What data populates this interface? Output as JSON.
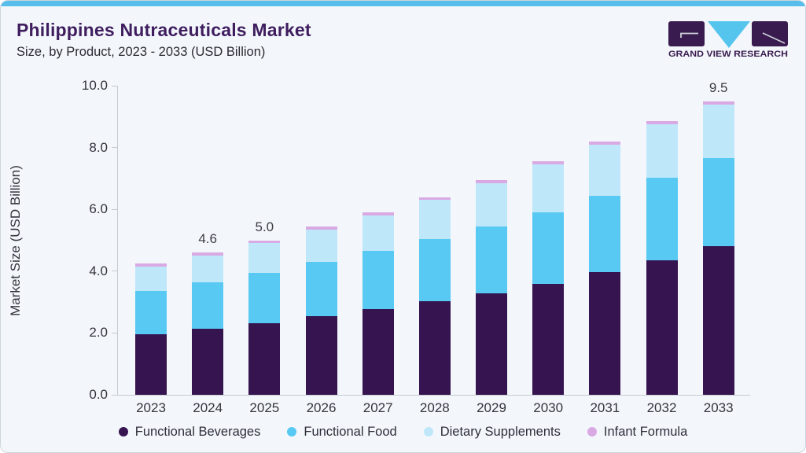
{
  "header": {
    "title": "Philippines Nutraceuticals Market",
    "subtitle": "Size, by Product, 2023 - 2033 (USD Billion)"
  },
  "logo": {
    "brand_text": "GRAND VIEW RESEARCH",
    "tile_color": "#3a1b4f",
    "triangle_color": "#56c5ee"
  },
  "colors": {
    "card_background": "#f3f7fb",
    "top_accent_bar": "#57bdeb",
    "title_text": "#3f1d5f",
    "axis_text": "#34333e",
    "axis_line": "#c6cbd2"
  },
  "chart_data": {
    "type": "bar",
    "stacked": true,
    "title": "Philippines Nutraceuticals Market Size, by Product, 2023 - 2033 (USD Billion)",
    "xlabel": "",
    "ylabel": "Market Size (USD Billion)",
    "ylim": [
      0,
      10
    ],
    "yticks": [
      "0.0",
      "2.0",
      "4.0",
      "6.0",
      "8.0",
      "10.0"
    ],
    "grid": false,
    "legend_position": "bottom",
    "categories": [
      "2023",
      "2024",
      "2025",
      "2026",
      "2027",
      "2028",
      "2029",
      "2030",
      "2031",
      "2032",
      "2033"
    ],
    "series": [
      {
        "name": "Functional Beverages",
        "color": "#351450",
        "values": [
          1.95,
          2.13,
          2.32,
          2.55,
          2.78,
          3.03,
          3.28,
          3.58,
          3.97,
          4.36,
          4.82
        ]
      },
      {
        "name": "Functional Food",
        "color": "#58c9f3",
        "values": [
          1.42,
          1.52,
          1.63,
          1.75,
          1.87,
          2.0,
          2.17,
          2.32,
          2.46,
          2.66,
          2.85
        ]
      },
      {
        "name": "Dietary Supplements",
        "color": "#bfe7fa",
        "values": [
          0.78,
          0.85,
          0.95,
          1.05,
          1.15,
          1.27,
          1.4,
          1.55,
          1.67,
          1.73,
          1.73
        ]
      },
      {
        "name": "Infant Formula",
        "color": "#d9a9e3",
        "values": [
          0.1,
          0.1,
          0.1,
          0.1,
          0.1,
          0.1,
          0.1,
          0.1,
          0.1,
          0.1,
          0.1
        ]
      }
    ],
    "totals": [
      4.25,
      4.6,
      5.0,
      5.45,
      5.9,
      6.4,
      6.95,
      7.55,
      8.2,
      8.85,
      9.5
    ],
    "bar_labels": {
      "2024": "4.6",
      "2025": "5.0",
      "2033": "9.5"
    }
  }
}
